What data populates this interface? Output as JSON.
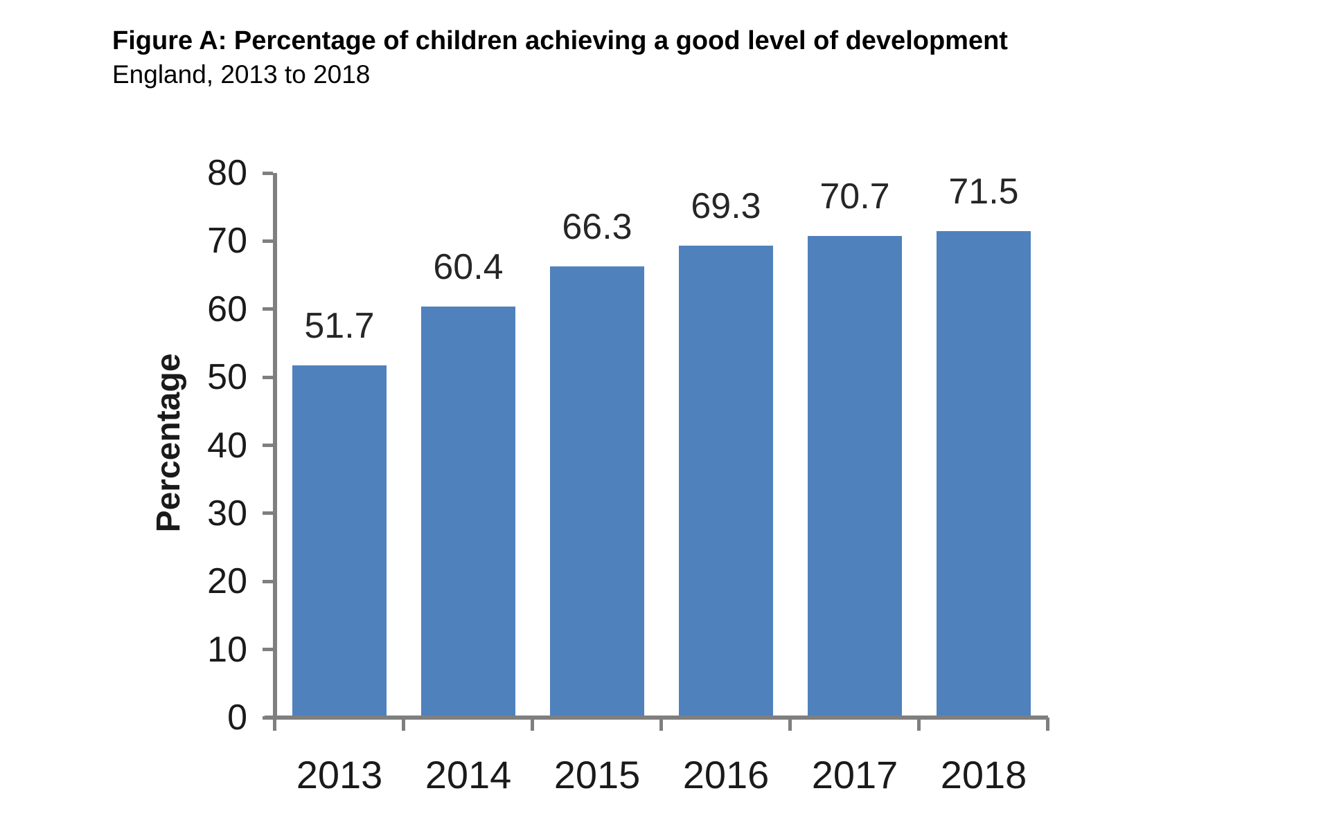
{
  "header": {
    "title": "Figure A: Percentage of children achieving a good level of development",
    "subtitle": "England, 2013 to 2018"
  },
  "chart_data": {
    "type": "bar",
    "categories": [
      "2013",
      "2014",
      "2015",
      "2016",
      "2017",
      "2018"
    ],
    "values": [
      51.7,
      60.4,
      66.3,
      69.3,
      70.7,
      71.5
    ],
    "data_labels": [
      "51.7",
      "60.4",
      "66.3",
      "69.3",
      "70.7",
      "71.5"
    ],
    "title": "Figure A: Percentage of children achieving a good level of development",
    "subtitle": "England, 2013 to 2018",
    "xlabel": "",
    "ylabel": "Percentage",
    "ylim": [
      0,
      80
    ],
    "yticks": [
      0,
      10,
      20,
      30,
      40,
      50,
      60,
      70,
      80
    ],
    "grid": false,
    "legend_position": "none",
    "colors": {
      "bar_fill": "#4F81BD",
      "axis_line": "#7f7f7f",
      "axis_text": "#1a1a1a",
      "data_label_text": "#262626",
      "background": "#ffffff"
    }
  }
}
